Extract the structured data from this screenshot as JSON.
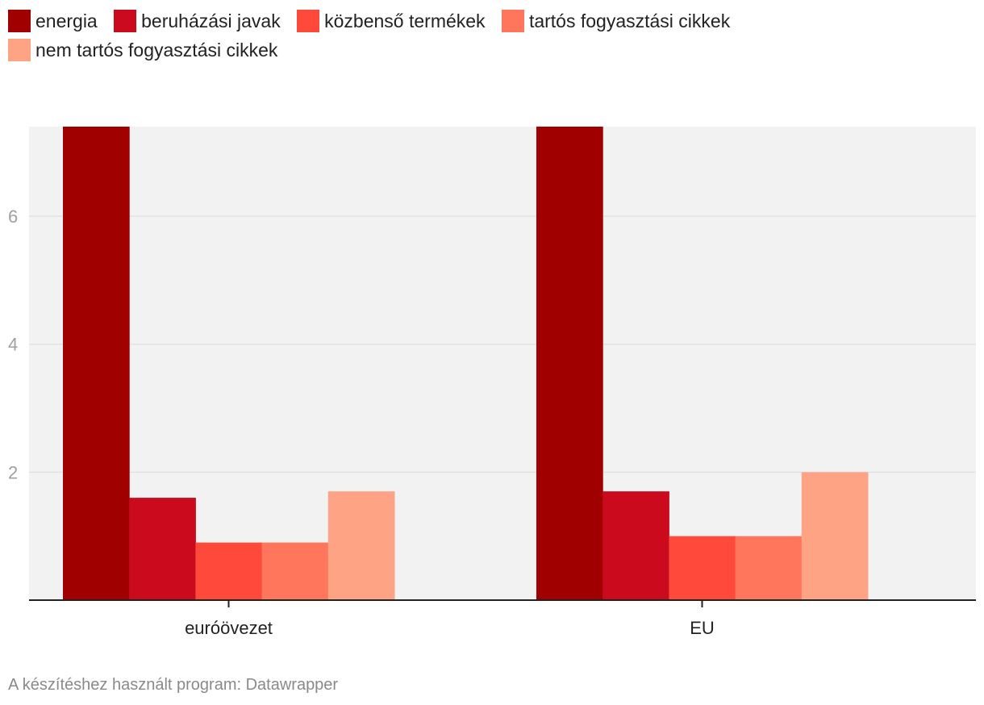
{
  "chart_data": {
    "type": "bar",
    "title": "",
    "xlabel": "",
    "ylabel": "",
    "categories": [
      "euróövezet",
      "EU"
    ],
    "series": [
      {
        "name": "energia",
        "color": "#a00000",
        "values": [
          7.4,
          7.4
        ]
      },
      {
        "name": "beruházási javak",
        "color": "#cc0a1d",
        "values": [
          1.6,
          1.7
        ]
      },
      {
        "name": "közbenső termékek",
        "color": "#ff4a3b",
        "values": [
          0.9,
          1.0
        ]
      },
      {
        "name": "tartós fogyasztási cikkek",
        "color": "#ff765d",
        "values": [
          0.9,
          1.0
        ]
      },
      {
        "name": "nem tartós fogyasztási cikkek",
        "color": "#ffa385",
        "values": [
          1.7,
          2.0
        ]
      }
    ],
    "ylim": [
      0,
      7.4
    ],
    "yticks": [
      2,
      4,
      6
    ],
    "ytick_labels": [
      "2",
      "4",
      "6"
    ],
    "grid": true,
    "legend_position": "top"
  },
  "legend": {
    "items": [
      {
        "label": "energia",
        "color": "#a00000"
      },
      {
        "label": "beruházási javak",
        "color": "#cc0a1d"
      },
      {
        "label": "közbenső termékek",
        "color": "#ff4a3b"
      },
      {
        "label": "tartós fogyasztási cikkek",
        "color": "#ff765d"
      },
      {
        "label": "nem tartós fogyasztási cikkek",
        "color": "#ffa385"
      }
    ]
  },
  "footer": {
    "credit": "A készítéshez használt program: Datawrapper"
  }
}
